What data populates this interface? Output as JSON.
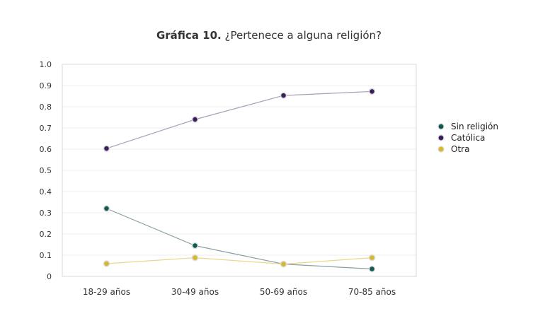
{
  "chart_data": {
    "type": "line",
    "title_bold": "Gráfica 10.",
    "title_rest": " ¿Pertenece a alguna religión?",
    "categories": [
      "18-29 años",
      "30-49 años",
      "50-69 años",
      "70-85 años"
    ],
    "ylim": [
      0,
      1.0
    ],
    "yticks": [
      "0",
      "0.1",
      "0.2",
      "0.3",
      "0.4",
      "0.5",
      "0.6",
      "0.7",
      "0.8",
      "0.9",
      "1.0"
    ],
    "grid": true,
    "legend_position": "right",
    "series": [
      {
        "name": "Sin religión",
        "values": [
          0.32,
          0.145,
          0.058,
          0.035
        ],
        "color": "#0f5a4e",
        "line_color": "#8aa0a3"
      },
      {
        "name": "Católica",
        "values": [
          0.603,
          0.74,
          0.853,
          0.872
        ],
        "color": "#3a1f5d",
        "line_color": "#a7a0b6"
      },
      {
        "name": "Otra",
        "values": [
          0.06,
          0.088,
          0.058,
          0.088
        ],
        "color": "#d8b62e",
        "line_color": "#ead78c"
      }
    ]
  }
}
